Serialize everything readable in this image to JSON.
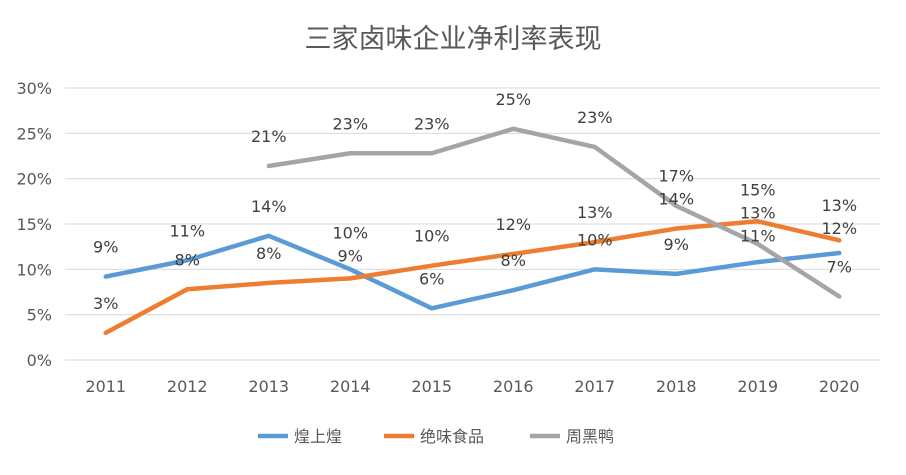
{
  "chart_data": {
    "type": "line",
    "title": "三家卤味企业净利率表现",
    "categories": [
      "2011",
      "2012",
      "2013",
      "2014",
      "2015",
      "2016",
      "2017",
      "2018",
      "2019",
      "2020"
    ],
    "ylim": [
      0,
      30
    ],
    "yticks": [
      "0%",
      "5%",
      "10%",
      "15%",
      "20%",
      "25%",
      "30%"
    ],
    "grid": true,
    "legend_position": "bottom",
    "series": [
      {
        "name": "煌上煌",
        "color": "#5B9BD5",
        "values": [
          9.2,
          11.0,
          13.7,
          10.0,
          5.7,
          7.7,
          10.0,
          9.5,
          10.8,
          11.8
        ],
        "labels": [
          "9%",
          "11%",
          "14%",
          "10%",
          "6%",
          "8%",
          "10%",
          "9%",
          "11%",
          "12%"
        ]
      },
      {
        "name": "绝味食品",
        "color": "#ED7D31",
        "values": [
          3.0,
          7.8,
          8.5,
          9.0,
          10.4,
          11.7,
          13.0,
          14.5,
          15.3,
          13.2
        ],
        "labels": [
          "3%",
          "8%",
          "8%",
          "9%",
          "10%",
          "12%",
          "13%",
          "14%",
          "15%",
          "13%"
        ]
      },
      {
        "name": "周黑鸭",
        "color": "#A5A5A5",
        "values": [
          null,
          null,
          21.4,
          22.8,
          22.8,
          25.5,
          23.5,
          17.0,
          12.8,
          7.0
        ],
        "labels": [
          null,
          null,
          "21%",
          "23%",
          "23%",
          "25%",
          "23%",
          "17%",
          "13%",
          "7%"
        ]
      }
    ]
  }
}
